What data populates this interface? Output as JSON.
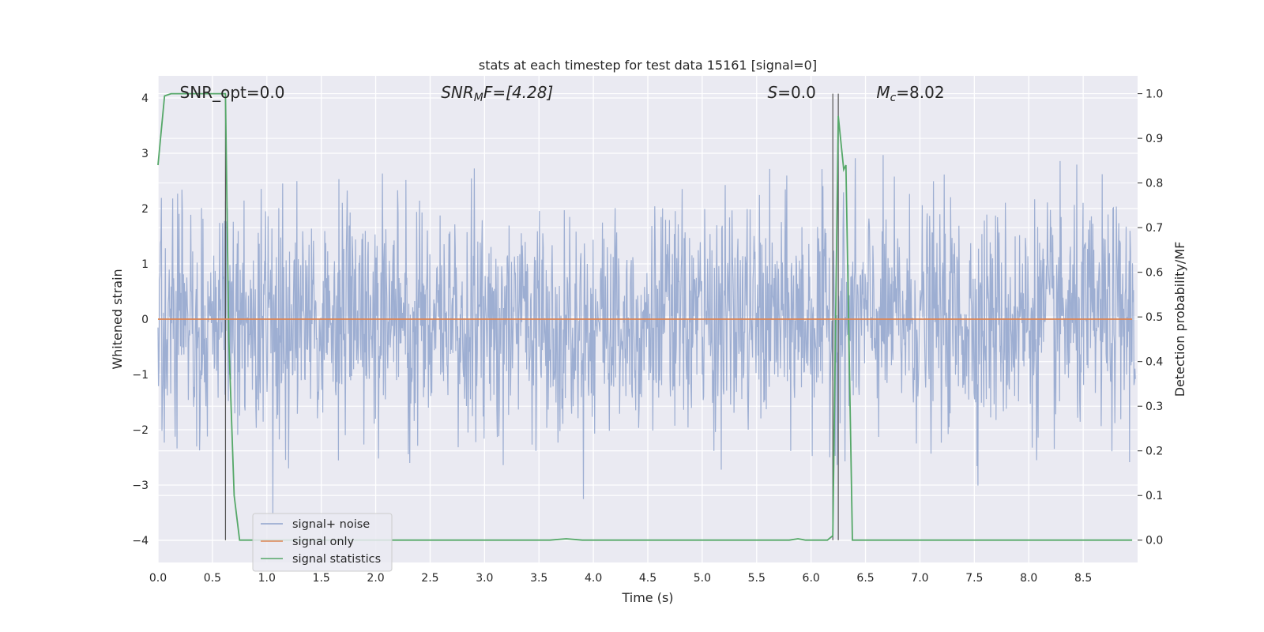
{
  "chart_data": {
    "type": "line",
    "title": "stats at each timestep for test data 15161 [signal=0]",
    "xlabel": "Time (s)",
    "ylabel": "Whitened strain",
    "y2label": "Detection probability/MF",
    "xlim": [
      0.0,
      9.0
    ],
    "ylim": [
      -4.4,
      4.4
    ],
    "y2lim": [
      -0.05,
      1.04
    ],
    "x_ticks": [
      0.0,
      0.5,
      1.0,
      1.5,
      2.0,
      2.5,
      3.0,
      3.5,
      4.0,
      4.5,
      5.0,
      5.5,
      6.0,
      6.5,
      7.0,
      7.5,
      8.0,
      8.5
    ],
    "x_tick_labels": [
      "0.0",
      "0.5",
      "1.0",
      "1.5",
      "2.0",
      "2.5",
      "3.0",
      "3.5",
      "4.0",
      "4.5",
      "5.0",
      "5.5",
      "6.0",
      "6.5",
      "7.0",
      "7.5",
      "8.0",
      "8.5"
    ],
    "y_ticks": [
      4,
      3,
      2,
      1,
      0,
      -1,
      -2,
      -3,
      -4
    ],
    "y_tick_labels": [
      "4",
      "3",
      "2",
      "1",
      "0",
      "−1",
      "−2",
      "−3",
      "−4"
    ],
    "y2_ticks": [
      1.0,
      0.9,
      0.8,
      0.7,
      0.6,
      0.5,
      0.4,
      0.3,
      0.2,
      0.1,
      0.0
    ],
    "y2_tick_labels": [
      "1.0",
      "0.9",
      "0.8",
      "0.7",
      "0.6",
      "0.5",
      "0.4",
      "0.3",
      "0.2",
      "0.1",
      "0.0"
    ],
    "grid": true,
    "legend_position": "lower-left",
    "legend": [
      {
        "label": "signal+ noise",
        "color": "#8fa3cc"
      },
      {
        "label": "signal only",
        "color": "#dd8452"
      },
      {
        "label": "signal statistics",
        "color": "#55a868"
      }
    ],
    "annotations": {
      "snr_opt": {
        "text": "SNR_opt=0.0",
        "x": 0.2
      },
      "snr_mf": {
        "prefix": "SNR",
        "sub": "M",
        "suffix": "F=[4.28]",
        "x": 2.6
      },
      "s": {
        "prefix": "S",
        "suffix": "=0.0",
        "x": 5.6
      },
      "mc": {
        "prefix": "M",
        "sub": "c",
        "suffix": "=8.02",
        "x": 6.6
      }
    },
    "vertical_lines_x": [
      0.62,
      6.2,
      6.25
    ],
    "noise": {
      "seed": 15161,
      "n_samples": 2000,
      "peak_max": 4.0,
      "peak_min": -4.0
    },
    "series": [
      {
        "name": "signal statistics",
        "axis": "y2",
        "x": [
          0.0,
          0.06,
          0.12,
          0.2,
          0.3,
          0.4,
          0.5,
          0.58,
          0.62,
          0.65,
          0.7,
          0.75,
          1.0,
          2.0,
          3.0,
          3.6,
          3.75,
          3.9,
          5.0,
          5.8,
          5.88,
          5.95,
          6.0,
          6.15,
          6.2,
          6.25,
          6.3,
          6.32,
          6.38,
          6.5,
          7.0,
          8.0,
          8.95
        ],
        "y": [
          0.84,
          0.995,
          1.0,
          1.0,
          1.0,
          1.0,
          1.0,
          1.0,
          1.0,
          0.45,
          0.1,
          0.0,
          0.0,
          0.0,
          0.0,
          0.0,
          0.003,
          0.0,
          0.0,
          0.0,
          0.003,
          0.0,
          0.0,
          0.0,
          0.01,
          0.95,
          0.83,
          0.84,
          0.0,
          0.0,
          0.0,
          0.0,
          0.0
        ]
      },
      {
        "name": "signal only",
        "axis": "y",
        "x": [
          0.0,
          8.95
        ],
        "y": [
          0.0,
          0.0
        ]
      }
    ]
  }
}
